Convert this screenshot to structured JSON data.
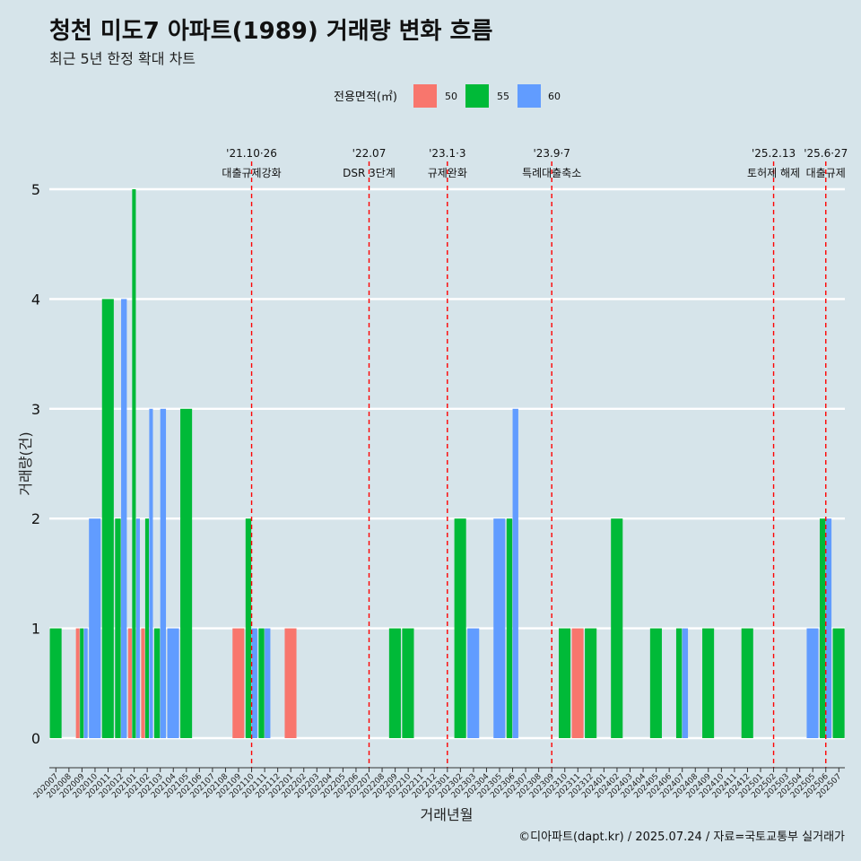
{
  "title": "청천 미도7 아파트(1989) 거래량 변화 흐름",
  "subtitle": "최근 5년 한정 확대 차트",
  "caption": "©디아파트(dapt.kr) / 2025.07.24 / 자료=국토교통부 실거래가",
  "colors": {
    "50": "#f8766d",
    "55": "#00ba38",
    "60": "#619cff",
    "event_line": "#ff0000",
    "background": "#d6e4ea"
  },
  "chart_data": {
    "type": "bar",
    "xlabel": "거래년월",
    "ylabel": "거래량(건)",
    "ylim": [
      0,
      5
    ],
    "yticks": [
      0,
      1,
      2,
      3,
      4,
      5
    ],
    "grid": "horizontal",
    "legend": {
      "title": "전용면적(㎡)",
      "position": "top",
      "entries": [
        "50",
        "55",
        "60"
      ]
    },
    "categories": [
      "202007",
      "202008",
      "202009",
      "202010",
      "202011",
      "202012",
      "202101",
      "202102",
      "202103",
      "202104",
      "202105",
      "202106",
      "202107",
      "202108",
      "202109",
      "202110",
      "202111",
      "202112",
      "202201",
      "202202",
      "202203",
      "202204",
      "202205",
      "202206",
      "202207",
      "202208",
      "202209",
      "202210",
      "202211",
      "202212",
      "202301",
      "202302",
      "202303",
      "202304",
      "202305",
      "202306",
      "202307",
      "202308",
      "202309",
      "202310",
      "202311",
      "202312",
      "202401",
      "202402",
      "202403",
      "202404",
      "202405",
      "202406",
      "202407",
      "202408",
      "202409",
      "202410",
      "202411",
      "202412",
      "202501",
      "202502",
      "202503",
      "202504",
      "202505",
      "202506",
      "202507"
    ],
    "series": [
      {
        "name": "50",
        "values": [
          0,
          0,
          1,
          0,
          0,
          0,
          1,
          1,
          0,
          0,
          0,
          0,
          0,
          0,
          1,
          0,
          0,
          0,
          1,
          0,
          0,
          0,
          0,
          0,
          0,
          0,
          0,
          0,
          0,
          0,
          0,
          0,
          0,
          0,
          0,
          0,
          0,
          0,
          0,
          0,
          1,
          0,
          0,
          0,
          0,
          0,
          0,
          0,
          0,
          0,
          0,
          0,
          0,
          0,
          0,
          0,
          0,
          0,
          0,
          0,
          0
        ]
      },
      {
        "name": "55",
        "values": [
          1,
          0,
          1,
          0,
          4,
          2,
          5,
          2,
          1,
          0,
          3,
          0,
          0,
          0,
          0,
          2,
          1,
          0,
          0,
          0,
          0,
          0,
          0,
          0,
          0,
          0,
          1,
          1,
          0,
          0,
          0,
          2,
          0,
          0,
          0,
          2,
          0,
          0,
          0,
          1,
          0,
          1,
          0,
          2,
          0,
          0,
          1,
          0,
          1,
          0,
          1,
          0,
          0,
          1,
          0,
          0,
          0,
          0,
          0,
          2,
          1
        ]
      },
      {
        "name": "60",
        "values": [
          0,
          0,
          1,
          2,
          0,
          4,
          2,
          3,
          3,
          1,
          0,
          0,
          0,
          0,
          0,
          1,
          1,
          0,
          0,
          0,
          0,
          0,
          0,
          0,
          0,
          0,
          0,
          0,
          0,
          0,
          0,
          0,
          1,
          0,
          2,
          3,
          0,
          0,
          0,
          0,
          0,
          0,
          0,
          0,
          0,
          0,
          0,
          0,
          1,
          0,
          0,
          0,
          0,
          0,
          0,
          0,
          0,
          0,
          1,
          2,
          0
        ]
      }
    ],
    "events": [
      {
        "month": "202110",
        "date": "'21.10·26",
        "label": "대출규제강화"
      },
      {
        "month": "202207",
        "date": "'22.07",
        "label": "DSR 3단계"
      },
      {
        "month": "202301",
        "date": "'23.1·3",
        "label": "규제완화"
      },
      {
        "month": "202309",
        "date": "'23.9·7",
        "label": "특례대출축소"
      },
      {
        "month": "202502",
        "date": "'25.2.13",
        "label": "토허제 해제"
      },
      {
        "month": "202506",
        "date": "'25.6·27",
        "label": "대출규제"
      }
    ]
  }
}
